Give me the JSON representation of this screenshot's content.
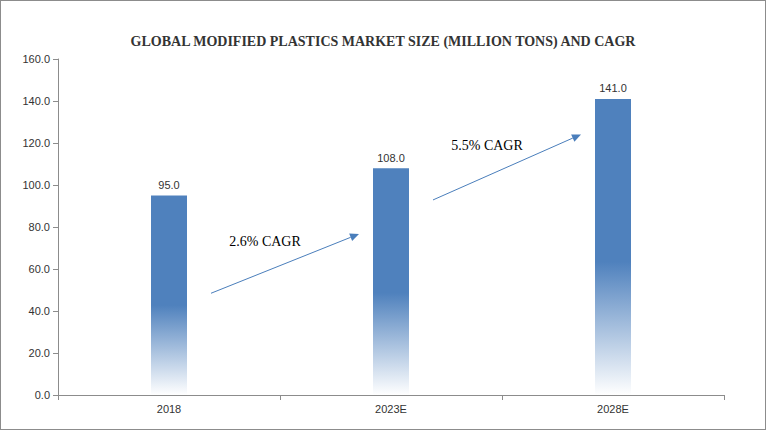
{
  "chart_data": {
    "type": "bar",
    "title": "GLOBAL MODIFIED PLASTICS MARKET SIZE (MILLION TONS) AND CAGR",
    "categories": [
      "2018",
      "2023E",
      "2028E"
    ],
    "values": [
      95,
      108,
      141
    ],
    "value_labels": [
      "95.0",
      "108.0",
      "141.0"
    ],
    "data_labels": true,
    "color": "#4f81bd",
    "ylim": [
      0,
      160
    ],
    "yticks": [
      {
        "value": 0,
        "label": "0.0"
      },
      {
        "value": 20,
        "label": "20.0"
      },
      {
        "value": 40,
        "label": "40.0"
      },
      {
        "value": 60,
        "label": "60.0"
      },
      {
        "value": 80,
        "label": "80.0"
      },
      {
        "value": 100,
        "label": "100.0"
      },
      {
        "value": 120,
        "label": "120.0"
      },
      {
        "value": 140,
        "label": "140.0"
      },
      {
        "value": 160,
        "label": "160.0"
      }
    ],
    "grid": false,
    "annotations": [
      {
        "text": "2.6% CAGR",
        "from": "2018",
        "to": "2023E"
      },
      {
        "text": "5.5% CAGR",
        "from": "2023E",
        "to": "2028E"
      }
    ]
  }
}
